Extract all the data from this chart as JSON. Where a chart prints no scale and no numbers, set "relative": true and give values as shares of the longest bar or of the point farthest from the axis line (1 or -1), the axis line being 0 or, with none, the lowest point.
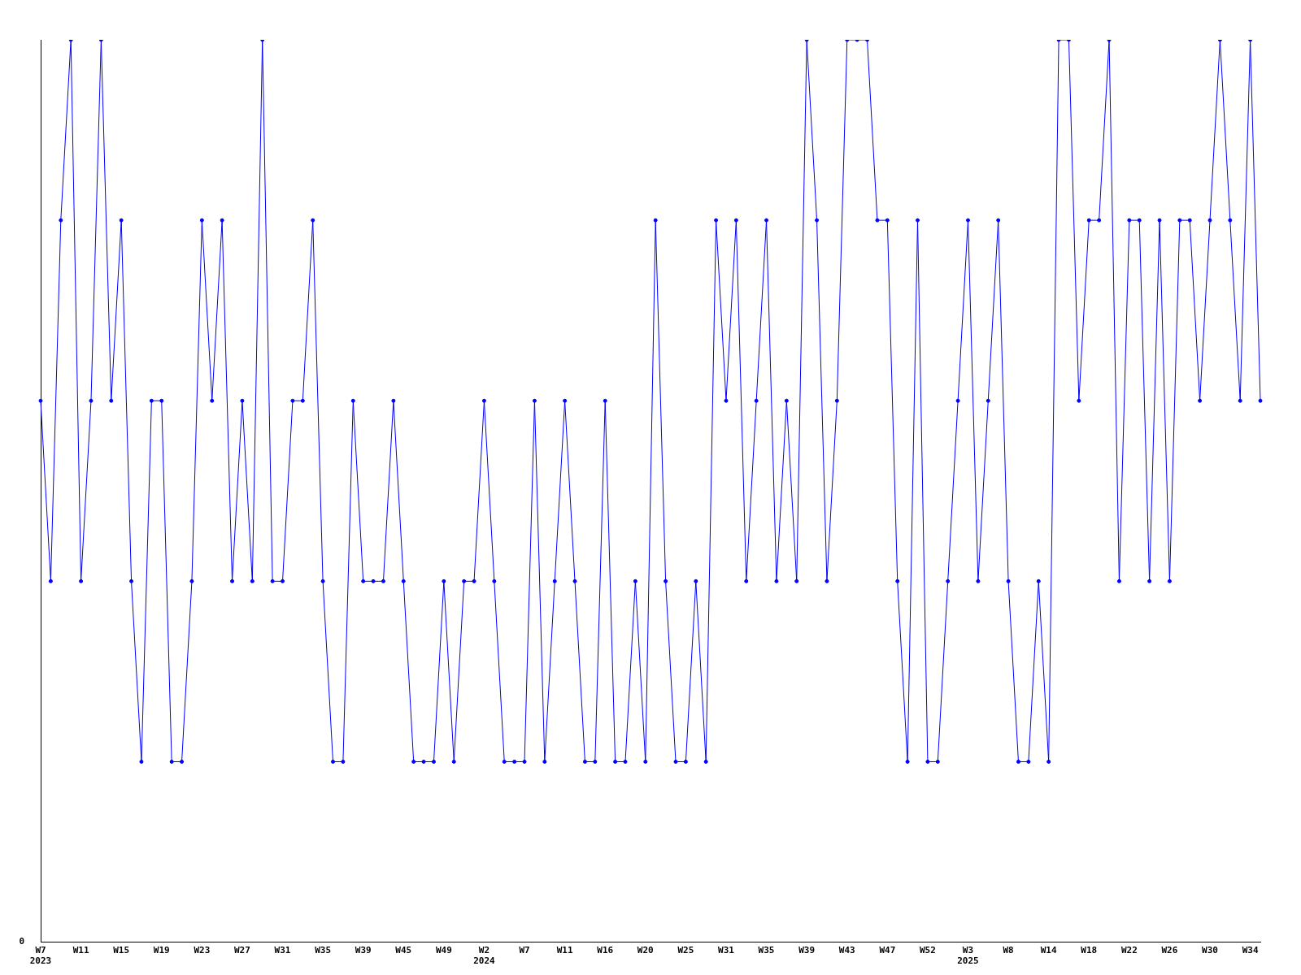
{
  "chart_data": {
    "type": "line",
    "relative": true,
    "color": "#0000ff",
    "marker": "circle",
    "grid": false,
    "legend": false,
    "categories": [
      "W7\n2023",
      null,
      null,
      null,
      "W11",
      null,
      null,
      null,
      "W15",
      null,
      null,
      null,
      "W19",
      null,
      null,
      null,
      "W23",
      null,
      null,
      null,
      "W27",
      null,
      null,
      null,
      "W31",
      null,
      null,
      null,
      "W35",
      null,
      null,
      null,
      "W39",
      null,
      null,
      null,
      "W45",
      null,
      null,
      null,
      "W49",
      null,
      null,
      null,
      "W2\n2024",
      null,
      null,
      null,
      "W7",
      null,
      null,
      null,
      "W11",
      null,
      null,
      null,
      "W16",
      null,
      null,
      null,
      "W20",
      null,
      null,
      null,
      "W25",
      null,
      null,
      null,
      "W31",
      null,
      null,
      null,
      "W35",
      null,
      null,
      null,
      "W39",
      null,
      null,
      null,
      "W43",
      null,
      null,
      null,
      "W47",
      null,
      null,
      null,
      "W52",
      null,
      null,
      null,
      "W3\n2025",
      null,
      null,
      null,
      "W8",
      null,
      null,
      null,
      "W14",
      null,
      null,
      null,
      "W18",
      null,
      null,
      null,
      "W22",
      null,
      null,
      null,
      "W26",
      null,
      null,
      null,
      "W30",
      null,
      null,
      null,
      "W34",
      null
    ],
    "values": [
      0.6,
      0.4,
      0.8,
      1,
      0.4,
      0.6,
      1,
      0.6,
      0.8,
      0.4,
      0.2,
      0.6,
      0.6,
      0.2,
      0.2,
      0.4,
      0.8,
      0.6,
      0.8,
      0.4,
      0.6,
      0.4,
      1,
      0.4,
      0.4,
      0.6,
      0.6,
      0.8,
      0.4,
      0.2,
      0.2,
      0.6,
      0.4,
      0.4,
      0.4,
      0.6,
      0.4,
      0.2,
      0.2,
      0.2,
      0.4,
      0.2,
      0.4,
      0.4,
      0.6,
      0.4,
      0.2,
      0.2,
      0.2,
      0.6,
      0.2,
      0.4,
      0.6,
      0.4,
      0.2,
      0.2,
      0.6,
      0.2,
      0.2,
      0.4,
      0.2,
      0.8,
      0.4,
      0.2,
      0.2,
      0.4,
      0.2,
      0.8,
      0.6,
      0.8,
      0.4,
      0.6,
      0.8,
      0.4,
      0.6,
      0.4,
      1,
      0.8,
      0.4,
      0.6,
      1,
      1,
      1,
      0.8,
      0.8,
      0.4,
      0.2,
      0.8,
      0.2,
      0.2,
      0.4,
      0.6,
      0.8,
      0.4,
      0.6,
      0.8,
      0.4,
      0.2,
      0.2,
      0.4,
      0.2,
      1,
      1,
      0.6,
      0.8,
      0.8,
      1,
      0.4,
      0.8,
      0.8,
      0.4,
      0.8,
      0.4,
      0.8,
      0.8,
      0.6,
      0.8,
      1,
      0.8,
      0.6,
      1,
      0.6
    ],
    "annotations": [
      "0"
    ]
  }
}
